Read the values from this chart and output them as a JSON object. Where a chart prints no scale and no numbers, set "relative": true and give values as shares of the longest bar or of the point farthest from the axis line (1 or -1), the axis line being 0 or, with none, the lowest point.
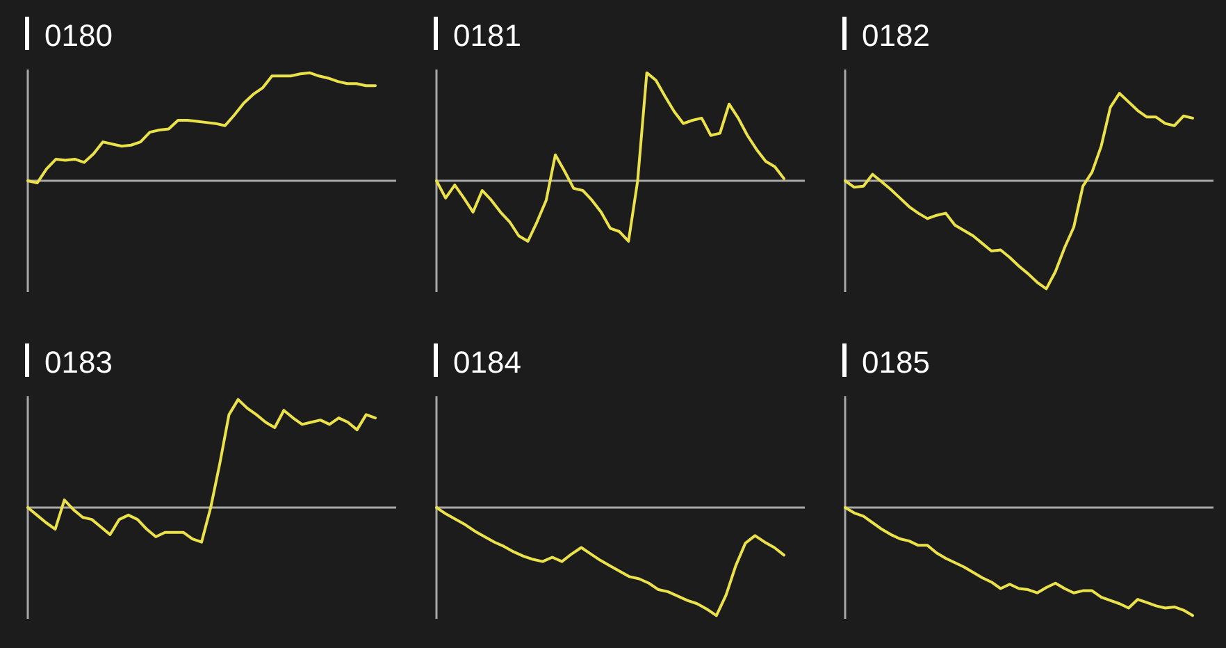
{
  "chart_data": [
    {
      "type": "line",
      "title": "0180",
      "relative": true,
      "categories": [
        null,
        null,
        null,
        null,
        null,
        null,
        null,
        null,
        null,
        null,
        null,
        null,
        null,
        null,
        null,
        null,
        null,
        null,
        null,
        null,
        null,
        null,
        null,
        null,
        null,
        null,
        null,
        null,
        null,
        null,
        null,
        null,
        null,
        null,
        null,
        null,
        null,
        null
      ],
      "series": [
        {
          "color": "#ebe24a",
          "values": [
            0,
            -0.02,
            0.11,
            0.2,
            0.19,
            0.2,
            0.17,
            0.25,
            0.36,
            0.34,
            0.32,
            0.33,
            0.36,
            0.45,
            0.47,
            0.48,
            0.56,
            0.56,
            0.55,
            0.54,
            0.53,
            0.51,
            0.61,
            0.72,
            0.8,
            0.86,
            0.97,
            0.97,
            0.97,
            0.99,
            1,
            0.97,
            0.95,
            0.92,
            0.9,
            0.9,
            0.88,
            0.88
          ]
        }
      ]
    },
    {
      "type": "line",
      "title": "0181",
      "relative": true,
      "categories": [
        null,
        null,
        null,
        null,
        null,
        null,
        null,
        null,
        null,
        null,
        null,
        null,
        null,
        null,
        null,
        null,
        null,
        null,
        null,
        null,
        null,
        null,
        null,
        null,
        null,
        null,
        null,
        null,
        null,
        null,
        null,
        null,
        null,
        null,
        null,
        null,
        null,
        null,
        null
      ],
      "series": [
        {
          "color": "#ebe24a",
          "values": [
            0,
            -0.16,
            -0.04,
            -0.16,
            -0.29,
            -0.09,
            -0.18,
            -0.29,
            -0.38,
            -0.51,
            -0.56,
            -0.38,
            -0.18,
            0.24,
            0.09,
            -0.07,
            -0.09,
            -0.18,
            -0.29,
            -0.44,
            -0.47,
            -0.56,
            0,
            1,
            0.93,
            0.78,
            0.64,
            0.53,
            0.56,
            0.58,
            0.42,
            0.44,
            0.71,
            0.58,
            0.42,
            0.29,
            0.18,
            0.13,
            0.02
          ]
        }
      ]
    },
    {
      "type": "line",
      "title": "0182",
      "relative": true,
      "categories": [
        null,
        null,
        null,
        null,
        null,
        null,
        null,
        null,
        null,
        null,
        null,
        null,
        null,
        null,
        null,
        null,
        null,
        null,
        null,
        null,
        null,
        null,
        null,
        null,
        null,
        null,
        null,
        null,
        null,
        null,
        null,
        null,
        null,
        null,
        null,
        null,
        null,
        null,
        null
      ],
      "series": [
        {
          "color": "#ebe24a",
          "values": [
            0,
            -0.06,
            -0.05,
            0.06,
            -0.01,
            -0.08,
            -0.16,
            -0.24,
            -0.3,
            -0.35,
            -0.32,
            -0.3,
            -0.41,
            -0.46,
            -0.51,
            -0.58,
            -0.65,
            -0.64,
            -0.71,
            -0.79,
            -0.86,
            -0.94,
            -1,
            -0.84,
            -0.62,
            -0.43,
            -0.05,
            0.08,
            0.32,
            0.68,
            0.81,
            0.73,
            0.65,
            0.59,
            0.59,
            0.53,
            0.51,
            0.6,
            0.58
          ]
        }
      ]
    },
    {
      "type": "line",
      "title": "0183",
      "relative": true,
      "categories": [
        null,
        null,
        null,
        null,
        null,
        null,
        null,
        null,
        null,
        null,
        null,
        null,
        null,
        null,
        null,
        null,
        null,
        null,
        null,
        null,
        null,
        null,
        null,
        null,
        null,
        null,
        null,
        null,
        null,
        null,
        null,
        null,
        null,
        null,
        null,
        null,
        null,
        null,
        null
      ],
      "series": [
        {
          "color": "#ebe24a",
          "values": [
            0,
            -0.07,
            -0.14,
            -0.2,
            0.07,
            -0.02,
            -0.09,
            -0.11,
            -0.18,
            -0.25,
            -0.11,
            -0.07,
            -0.11,
            -0.2,
            -0.27,
            -0.23,
            -0.23,
            -0.23,
            -0.29,
            -0.32,
            0,
            0.41,
            0.86,
            1,
            0.92,
            0.86,
            0.79,
            0.74,
            0.9,
            0.83,
            0.77,
            0.79,
            0.81,
            0.77,
            0.83,
            0.79,
            0.72,
            0.86,
            0.83
          ]
        }
      ]
    },
    {
      "type": "line",
      "title": "0184",
      "relative": true,
      "categories": [
        null,
        null,
        null,
        null,
        null,
        null,
        null,
        null,
        null,
        null,
        null,
        null,
        null,
        null,
        null,
        null,
        null,
        null,
        null,
        null,
        null,
        null,
        null,
        null,
        null,
        null,
        null,
        null,
        null,
        null,
        null,
        null,
        null,
        null,
        null,
        null,
        null
      ],
      "series": [
        {
          "color": "#ebe24a",
          "values": [
            0,
            -0.06,
            -0.11,
            -0.16,
            -0.22,
            -0.27,
            -0.32,
            -0.36,
            -0.41,
            -0.45,
            -0.48,
            -0.5,
            -0.46,
            -0.5,
            -0.43,
            -0.37,
            -0.43,
            -0.49,
            -0.54,
            -0.59,
            -0.64,
            -0.66,
            -0.7,
            -0.76,
            -0.78,
            -0.82,
            -0.86,
            -0.89,
            -0.94,
            -1,
            -0.81,
            -0.54,
            -0.33,
            -0.26,
            -0.32,
            -0.37,
            -0.44
          ]
        }
      ]
    },
    {
      "type": "line",
      "title": "0185",
      "relative": true,
      "categories": [
        null,
        null,
        null,
        null,
        null,
        null,
        null,
        null,
        null,
        null,
        null,
        null,
        null,
        null,
        null,
        null,
        null,
        null,
        null,
        null,
        null,
        null,
        null,
        null,
        null,
        null,
        null,
        null,
        null,
        null,
        null,
        null,
        null,
        null,
        null,
        null,
        null,
        null,
        null
      ],
      "series": [
        {
          "color": "#ebe24a",
          "values": [
            0,
            -0.05,
            -0.08,
            -0.14,
            -0.2,
            -0.25,
            -0.29,
            -0.31,
            -0.35,
            -0.35,
            -0.42,
            -0.47,
            -0.51,
            -0.55,
            -0.6,
            -0.65,
            -0.69,
            -0.75,
            -0.71,
            -0.75,
            -0.76,
            -0.79,
            -0.74,
            -0.7,
            -0.75,
            -0.79,
            -0.77,
            -0.77,
            -0.83,
            -0.86,
            -0.89,
            -0.93,
            -0.85,
            -0.88,
            -0.91,
            -0.93,
            -0.92,
            -0.95,
            -1
          ]
        }
      ]
    }
  ]
}
